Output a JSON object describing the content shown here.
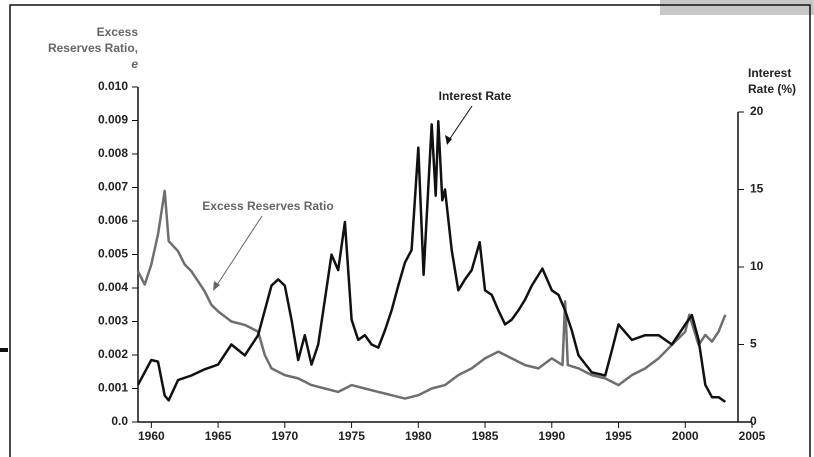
{
  "chart_data": {
    "type": "line",
    "y_label": [
      "Excess",
      "Reserves Ratio,",
      "e"
    ],
    "y2_label": [
      "Interest",
      "Rate (%)"
    ],
    "annotations": [
      "Interest Rate",
      "Excess Reserves Ratio"
    ],
    "xlim": [
      1959,
      2005
    ],
    "xticks": [
      1960,
      1965,
      1970,
      1975,
      1980,
      1985,
      1990,
      1995,
      2000,
      2005
    ],
    "ylim": [
      0,
      0.01
    ],
    "yticks": [
      {
        "value": 0,
        "label": "0.0"
      },
      0.001,
      0.002,
      0.003,
      0.004,
      0.005,
      0.006,
      0.007,
      0.008,
      0.009,
      {
        "value": 0.01,
        "label": "0.010"
      }
    ],
    "y2lim": [
      0,
      20
    ],
    "y2ticks": [
      0,
      5,
      10,
      15,
      20
    ],
    "series": [
      {
        "name": "Excess Reserves Ratio",
        "color": "#6e6e6e",
        "x": [
          1959,
          1959.5,
          1960,
          1960.5,
          1961,
          1961.3,
          1962,
          1962.5,
          1963,
          1963.5,
          1964,
          1964.5,
          1965,
          1966,
          1967,
          1968,
          1968.5,
          1969,
          1970,
          1971,
          1972,
          1973,
          1974,
          1975,
          1976,
          1977,
          1978,
          1979,
          1980,
          1981,
          1982,
          1983,
          1984,
          1985,
          1986,
          1987,
          1988,
          1989,
          1990,
          1990.8,
          1991,
          1991.2,
          1992,
          1993,
          1994,
          1995,
          1996,
          1997,
          1998,
          1999,
          2000,
          2000.3,
          2001,
          2001.5,
          2002,
          2002.5,
          2003
        ],
        "values": [
          0.0045,
          0.0041,
          0.0047,
          0.0056,
          0.0069,
          0.0054,
          0.0051,
          0.0047,
          0.0045,
          0.0042,
          0.0039,
          0.0035,
          0.0033,
          0.003,
          0.0029,
          0.0027,
          0.002,
          0.0016,
          0.0014,
          0.0013,
          0.0011,
          0.001,
          0.0009,
          0.0011,
          0.001,
          0.0009,
          0.0008,
          0.0007,
          0.0008,
          0.001,
          0.0011,
          0.0014,
          0.0016,
          0.0019,
          0.0021,
          0.0019,
          0.0017,
          0.0016,
          0.0019,
          0.0017,
          0.0036,
          0.0017,
          0.0016,
          0.0014,
          0.0013,
          0.0011,
          0.0014,
          0.0016,
          0.0019,
          0.0023,
          0.0027,
          0.0032,
          0.0023,
          0.0026,
          0.0024,
          0.0027,
          0.0032
        ]
      },
      {
        "name": "Interest Rate",
        "color": "#111111",
        "axis": "y2",
        "x": [
          1959,
          1960,
          1960.5,
          1961,
          1961.3,
          1962,
          1963,
          1964,
          1965,
          1966,
          1967,
          1968,
          1969,
          1969.5,
          1970,
          1970.5,
          1971,
          1971.5,
          1972,
          1972.5,
          1973,
          1973.5,
          1974,
          1974.5,
          1975,
          1975.5,
          1976,
          1976.5,
          1977,
          1977.5,
          1978,
          1978.5,
          1979,
          1979.5,
          1980,
          1980.4,
          1980.7,
          1981,
          1981.3,
          1981.5,
          1981.8,
          1982,
          1982.5,
          1983,
          1983.5,
          1984,
          1984.6,
          1985,
          1985.5,
          1986,
          1986.5,
          1987,
          1987.5,
          1988,
          1988.5,
          1989.3,
          1990,
          1990.5,
          1991,
          1991.5,
          1992,
          1993,
          1994,
          1994.5,
          1995,
          1996,
          1997,
          1998,
          1999,
          2000,
          2000.5,
          2001,
          2001.5,
          2002,
          2002.5,
          2003
        ],
        "values": [
          2.4,
          4.0,
          3.9,
          1.7,
          1.4,
          2.7,
          3.0,
          3.4,
          3.7,
          5.0,
          4.3,
          5.6,
          8.8,
          9.2,
          8.8,
          6.6,
          4.0,
          5.6,
          3.7,
          5.0,
          7.9,
          10.8,
          9.8,
          12.9,
          6.6,
          5.3,
          5.6,
          5.0,
          4.8,
          5.9,
          7.2,
          8.8,
          10.3,
          11.1,
          17.7,
          9.5,
          14.3,
          19.2,
          14.6,
          19.4,
          14.3,
          15.0,
          11.1,
          8.5,
          9.2,
          9.8,
          11.6,
          8.5,
          8.2,
          7.2,
          6.3,
          6.6,
          7.2,
          7.9,
          8.8,
          9.9,
          8.5,
          8.2,
          7.2,
          5.9,
          4.3,
          3.2,
          3.0,
          4.6,
          6.3,
          5.3,
          5.6,
          5.6,
          5.0,
          6.3,
          6.9,
          5.3,
          2.4,
          1.6,
          1.6,
          1.3
        ]
      }
    ]
  }
}
